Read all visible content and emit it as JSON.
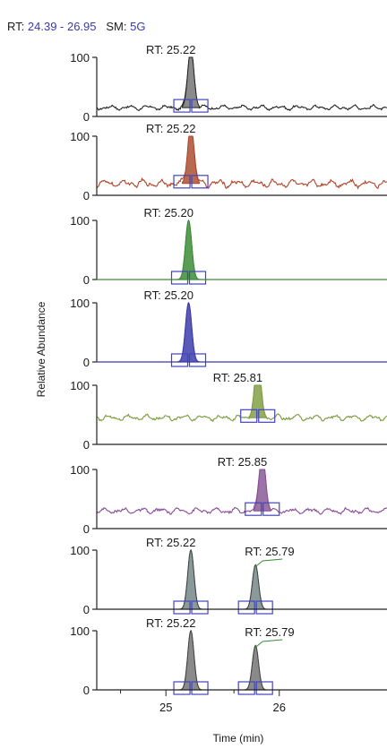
{
  "header": {
    "rt_label": "RT:",
    "rt_range": "24.39 - 26.95",
    "sm_label": "SM:",
    "sm_value": "5G"
  },
  "chart_data": {
    "type": "line",
    "xlabel": "Time (min)",
    "ylabel": "Relative Abundance",
    "xlim": [
      24.39,
      26.95
    ],
    "ylim": [
      0,
      100
    ],
    "x_ticks": [
      25,
      26
    ],
    "y_ticks": [
      0,
      100
    ],
    "series": [
      {
        "color": "#222222",
        "fill": "#8a8a8a",
        "baseline": 15,
        "noise": 5,
        "peaks": [
          {
            "rt": 25.22,
            "height": 100,
            "label": "RT: 25.22"
          }
        ]
      },
      {
        "color": "#b0442a",
        "fill": "#b86a50",
        "baseline": 20,
        "noise": 8,
        "peaks": [
          {
            "rt": 25.22,
            "height": 100,
            "label": "RT: 25.22"
          }
        ]
      },
      {
        "color": "#3c8a36",
        "fill": "#5a9e56",
        "baseline": 0,
        "noise": 0,
        "peaks": [
          {
            "rt": 25.2,
            "height": 100,
            "label": "RT: 25.20"
          }
        ]
      },
      {
        "color": "#3a3aa8",
        "fill": "#5a5ab8",
        "baseline": 0,
        "noise": 0,
        "peaks": [
          {
            "rt": 25.2,
            "height": 100,
            "label": "RT: 25.20"
          }
        ]
      },
      {
        "color": "#7a9a3a",
        "fill": "#96ae62",
        "baseline": 45,
        "noise": 6,
        "peaks": [
          {
            "rt": 25.81,
            "height": 100,
            "label": "RT: 25.81"
          }
        ]
      },
      {
        "color": "#8a4a98",
        "fill": "#9a74a4",
        "baseline": 30,
        "noise": 6,
        "peaks": [
          {
            "rt": 25.85,
            "height": 100,
            "label": "RT: 25.85"
          }
        ]
      },
      {
        "color": "#444444",
        "fill": "#8a9a9a",
        "baseline": 0,
        "noise": 0,
        "peaks": [
          {
            "rt": 25.22,
            "height": 100,
            "label": "RT: 25.22"
          },
          {
            "rt": 25.79,
            "height": 75,
            "label": "RT: 25.79"
          }
        ]
      },
      {
        "color": "#444444",
        "fill": "#8a8a8a",
        "baseline": 0,
        "noise": 0,
        "peaks": [
          {
            "rt": 25.22,
            "height": 100,
            "label": "RT: 25.22"
          },
          {
            "rt": 25.79,
            "height": 75,
            "label": "RT: 25.79"
          }
        ]
      }
    ]
  }
}
